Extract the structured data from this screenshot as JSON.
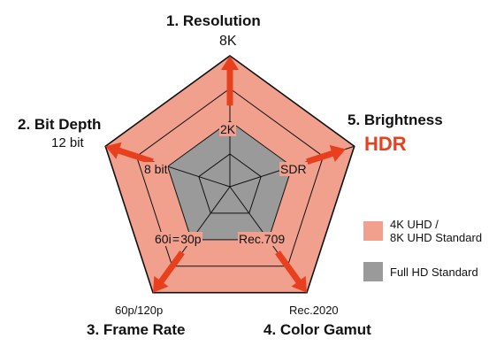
{
  "chart_data": {
    "type": "radar",
    "axes": [
      {
        "title": "1. Resolution",
        "outer_label": "8K",
        "inner_label": "2K"
      },
      {
        "title": "5. Brightness",
        "outer_label": "HDR",
        "inner_label": "SDR"
      },
      {
        "title": "4. Color Gamut",
        "outer_label": "Rec.2020",
        "inner_label": "Rec.709"
      },
      {
        "title": "3. Frame Rate",
        "outer_label": "60p/120p",
        "inner_label": "60i = 30p"
      },
      {
        "title": "2. Bit Depth",
        "outer_label": "12 bit",
        "inner_label": "8 bit"
      }
    ],
    "rings": 4,
    "series": [
      {
        "name": "4K UHD /\n8K UHD Standard",
        "color": "#f0a08c",
        "values": [
          1.0,
          1.0,
          1.0,
          1.0,
          1.0
        ]
      },
      {
        "name": "Full HD Standard",
        "color": "#9a9a9a",
        "values": [
          0.5,
          0.5,
          0.5,
          0.5,
          0.5
        ]
      }
    ],
    "arrow_color": "#e8401e"
  }
}
